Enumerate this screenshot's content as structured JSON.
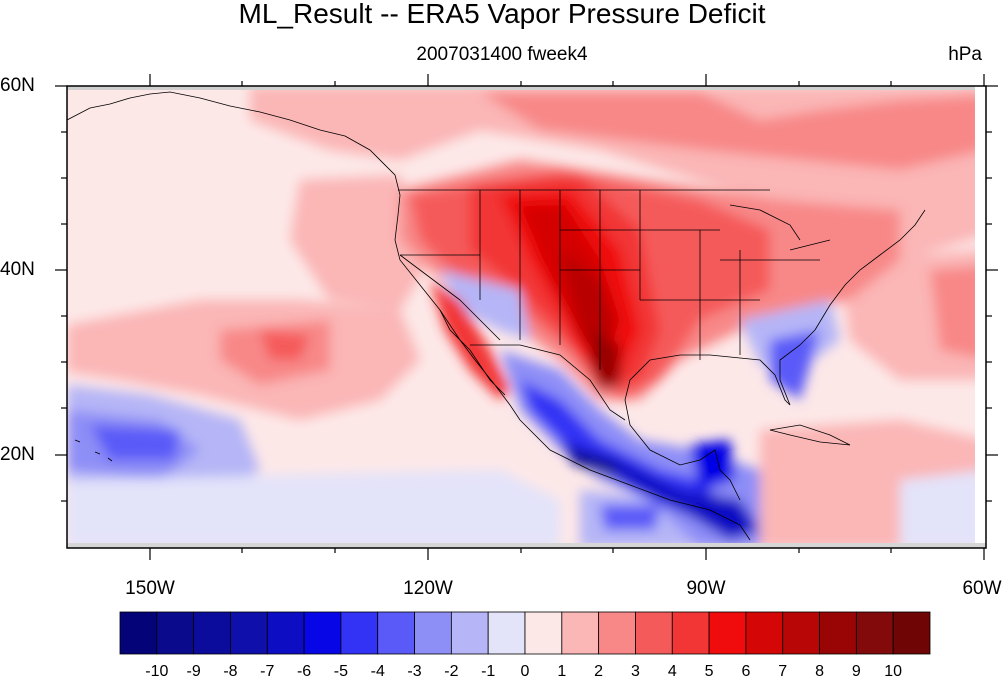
{
  "title": "ML_Result -- ERA5 Vapor Pressure Deficit",
  "subtitle": "2007031400 fweek4",
  "units": "hPa",
  "map": {
    "projection": "cylindrical equidistant",
    "lon_range": [
      -159,
      -60
    ],
    "lat_range": [
      10,
      60
    ],
    "lat_labels": [
      "60N",
      "40N",
      "20N"
    ],
    "lon_labels": [
      "150W",
      "120W",
      "90W",
      "60W"
    ],
    "field": "Vapor Pressure Deficit anomaly (ML result), contour fill",
    "palette_low": "#00007f",
    "palette_zero": "#ffffff",
    "palette_high": "#7f0000"
  },
  "colorbar": {
    "labels": [
      "-10",
      "-9",
      "-8",
      "-7",
      "-6",
      "-5",
      "-4",
      "-3",
      "-2",
      "-1",
      "0",
      "1",
      "2",
      "3",
      "4",
      "5",
      "6",
      "7",
      "8",
      "9",
      "10"
    ],
    "colors": [
      "#040478",
      "#0a0a8c",
      "#0c0c9c",
      "#0f0fab",
      "#0d0dc4",
      "#0606e6",
      "#3333f5",
      "#5a5af8",
      "#8e8ef7",
      "#b5b5f7",
      "#e3e3fa",
      "#fde8e8",
      "#fbb6b6",
      "#f88888",
      "#f55a5a",
      "#f23535",
      "#f00c0c",
      "#d40606",
      "#b80606",
      "#990404",
      "#830a0a",
      "#700505"
    ]
  }
}
